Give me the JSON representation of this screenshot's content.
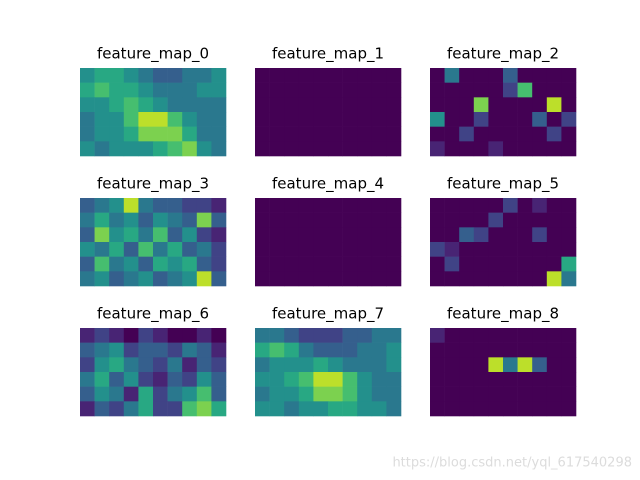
{
  "chart_data": [
    {
      "type": "heatmap",
      "title": "feature_map_0",
      "values": [
        [
          0.5,
          0.6,
          0.6,
          0.5,
          0.4,
          0.3,
          0.3,
          0.4,
          0.4,
          0.5
        ],
        [
          0.6,
          0.7,
          0.6,
          0.6,
          0.5,
          0.4,
          0.4,
          0.4,
          0.5,
          0.5
        ],
        [
          0.5,
          0.5,
          0.6,
          0.7,
          0.6,
          0.5,
          0.4,
          0.4,
          0.4,
          0.4
        ],
        [
          0.4,
          0.5,
          0.5,
          0.7,
          0.9,
          0.9,
          0.7,
          0.5,
          0.4,
          0.4
        ],
        [
          0.4,
          0.5,
          0.5,
          0.6,
          0.8,
          0.8,
          0.8,
          0.6,
          0.4,
          0.4
        ],
        [
          0.5,
          0.4,
          0.5,
          0.5,
          0.5,
          0.6,
          0.7,
          0.8,
          0.5,
          0.4
        ]
      ]
    },
    {
      "type": "heatmap",
      "title": "feature_map_1",
      "values": [
        [
          0,
          0,
          0,
          0,
          0,
          0,
          0,
          0,
          0,
          0
        ],
        [
          0,
          0,
          0,
          0,
          0,
          0,
          0,
          0,
          0,
          0
        ],
        [
          0,
          0,
          0,
          0,
          0,
          0,
          0,
          0,
          0,
          0
        ],
        [
          0,
          0,
          0,
          0,
          0,
          0,
          0,
          0,
          0,
          0
        ],
        [
          0,
          0,
          0,
          0,
          0,
          0,
          0,
          0,
          0,
          0
        ],
        [
          0,
          0,
          0,
          0,
          0,
          0,
          0,
          0,
          0,
          0
        ]
      ]
    },
    {
      "type": "heatmap",
      "title": "feature_map_2",
      "values": [
        [
          0,
          0.4,
          0,
          0,
          0,
          0.3,
          0,
          0,
          0,
          0
        ],
        [
          0,
          0,
          0,
          0,
          0,
          0.2,
          0.7,
          0,
          0,
          0
        ],
        [
          0,
          0,
          0,
          0.8,
          0,
          0,
          0,
          0,
          0.9,
          0
        ],
        [
          0.5,
          0,
          0,
          0.2,
          0,
          0,
          0,
          0.3,
          0,
          0.2
        ],
        [
          0,
          0,
          0.2,
          0,
          0,
          0,
          0,
          0,
          0.2,
          0
        ],
        [
          0.1,
          0,
          0,
          0,
          0.1,
          0,
          0,
          0,
          0,
          0
        ]
      ]
    },
    {
      "type": "heatmap",
      "title": "feature_map_3",
      "values": [
        [
          0.3,
          0.4,
          0.5,
          0.9,
          0.4,
          0.3,
          0.3,
          0.2,
          0.2,
          0.1
        ],
        [
          0.4,
          0.6,
          0.4,
          0.5,
          0.3,
          0.5,
          0.4,
          0.3,
          0.8,
          0.3
        ],
        [
          0.3,
          0.8,
          0.5,
          0.6,
          0.4,
          0.7,
          0.3,
          0.5,
          0.2,
          0.1
        ],
        [
          0.5,
          0.4,
          0.6,
          0.3,
          0.7,
          0.4,
          0.6,
          0.3,
          0.4,
          0.2
        ],
        [
          0.3,
          0.7,
          0.4,
          0.5,
          0.3,
          0.6,
          0.5,
          0.6,
          0.3,
          0.2
        ],
        [
          0.4,
          0.5,
          0.3,
          0.4,
          0.5,
          0.3,
          0.4,
          0.5,
          0.9,
          0.3
        ]
      ]
    },
    {
      "type": "heatmap",
      "title": "feature_map_4",
      "values": [
        [
          0,
          0,
          0,
          0,
          0,
          0,
          0,
          0,
          0,
          0
        ],
        [
          0,
          0,
          0,
          0,
          0,
          0,
          0,
          0,
          0,
          0
        ],
        [
          0,
          0,
          0,
          0,
          0,
          0,
          0,
          0,
          0,
          0
        ],
        [
          0,
          0,
          0,
          0,
          0,
          0,
          0,
          0,
          0,
          0
        ],
        [
          0,
          0,
          0,
          0,
          0,
          0,
          0,
          0,
          0,
          0
        ],
        [
          0,
          0,
          0,
          0,
          0,
          0,
          0,
          0,
          0,
          0
        ]
      ]
    },
    {
      "type": "heatmap",
      "title": "feature_map_5",
      "values": [
        [
          0,
          0,
          0,
          0,
          0,
          0.2,
          0,
          0.1,
          0,
          0
        ],
        [
          0,
          0,
          0,
          0,
          0.2,
          0,
          0,
          0,
          0,
          0
        ],
        [
          0,
          0,
          0.3,
          0.2,
          0,
          0,
          0,
          0.2,
          0,
          0
        ],
        [
          0.2,
          0.1,
          0,
          0,
          0,
          0,
          0,
          0,
          0,
          0
        ],
        [
          0,
          0.2,
          0,
          0,
          0,
          0,
          0,
          0,
          0,
          0.6
        ],
        [
          0,
          0,
          0,
          0,
          0,
          0,
          0,
          0,
          0.9,
          0.4
        ]
      ]
    },
    {
      "type": "heatmap",
      "title": "feature_map_6",
      "values": [
        [
          0.1,
          0.2,
          0.1,
          0,
          0.2,
          0.1,
          0,
          0,
          0.1,
          0
        ],
        [
          0.3,
          0.4,
          0.5,
          0.2,
          0.3,
          0.3,
          0.2,
          0.4,
          0.3,
          0.1
        ],
        [
          0.2,
          0.5,
          0.6,
          0.4,
          0.3,
          0.2,
          0.4,
          0.1,
          0.3,
          0.2
        ],
        [
          0.4,
          0.6,
          0.3,
          0.5,
          0.2,
          0.1,
          0.3,
          0.2,
          0.5,
          0.3
        ],
        [
          0.3,
          0.5,
          0.4,
          0.1,
          0.6,
          0.2,
          0.4,
          0.5,
          0.7,
          0.3
        ],
        [
          0.1,
          0.3,
          0.2,
          0.4,
          0.6,
          0.2,
          0.2,
          0.7,
          0.8,
          0.6
        ]
      ]
    },
    {
      "type": "heatmap",
      "title": "feature_map_7",
      "values": [
        [
          0.4,
          0.4,
          0.3,
          0.2,
          0.2,
          0.2,
          0.3,
          0.3,
          0.4,
          0.4
        ],
        [
          0.6,
          0.7,
          0.6,
          0.4,
          0.3,
          0.3,
          0.3,
          0.4,
          0.4,
          0.5
        ],
        [
          0.4,
          0.5,
          0.5,
          0.5,
          0.6,
          0.5,
          0.4,
          0.4,
          0.4,
          0.5
        ],
        [
          0.5,
          0.5,
          0.6,
          0.7,
          0.9,
          0.9,
          0.7,
          0.5,
          0.4,
          0.4
        ],
        [
          0.4,
          0.5,
          0.5,
          0.6,
          0.8,
          0.8,
          0.7,
          0.5,
          0.4,
          0.4
        ],
        [
          0.5,
          0.5,
          0.4,
          0.5,
          0.5,
          0.6,
          0.6,
          0.5,
          0.5,
          0.4
        ]
      ]
    },
    {
      "type": "heatmap",
      "title": "feature_map_8",
      "values": [
        [
          0.1,
          0,
          0,
          0,
          0,
          0,
          0,
          0,
          0,
          0
        ],
        [
          0,
          0,
          0,
          0,
          0,
          0,
          0,
          0,
          0,
          0
        ],
        [
          0,
          0,
          0,
          0,
          0.9,
          0.4,
          0.9,
          0.3,
          0,
          0
        ],
        [
          0,
          0,
          0,
          0,
          0,
          0,
          0,
          0,
          0,
          0
        ],
        [
          0,
          0,
          0,
          0,
          0,
          0,
          0,
          0,
          0,
          0
        ],
        [
          0,
          0,
          0,
          0,
          0,
          0,
          0,
          0,
          0,
          0
        ]
      ]
    }
  ],
  "watermark": "https://blog.csdn.net/yql_617540298"
}
